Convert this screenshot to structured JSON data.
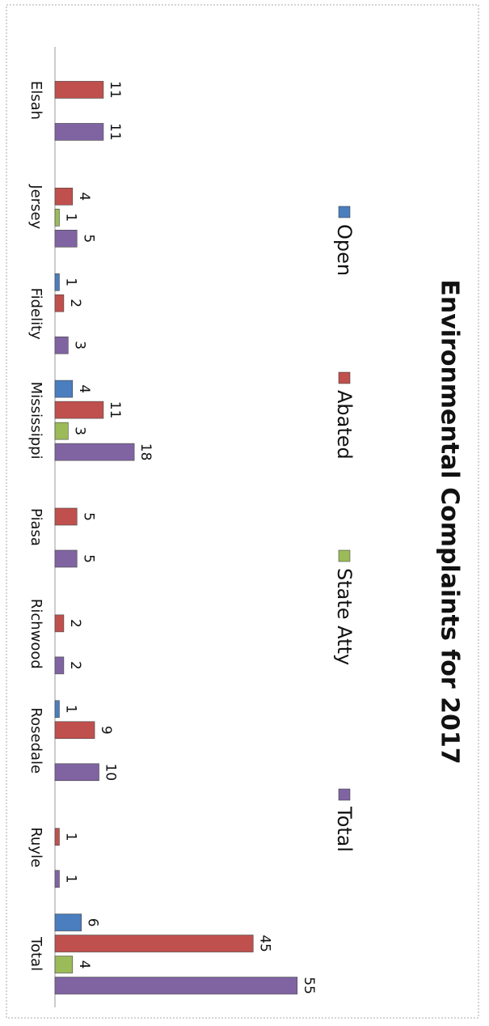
{
  "chart_data": {
    "type": "bar",
    "orientation": "rotated-90",
    "title": "Environmental Complaints for 2017",
    "categories": [
      "Elsah",
      "Jersey",
      "Fidelity",
      "Mississippi",
      "Piasa",
      "Richwood",
      "Rosedale",
      "Ruyle",
      "Total"
    ],
    "series": [
      {
        "name": "Open",
        "color": "#4a7ebf",
        "values": [
          null,
          null,
          1,
          4,
          null,
          null,
          1,
          null,
          6
        ]
      },
      {
        "name": "Abated",
        "color": "#c0504d",
        "values": [
          11,
          4,
          2,
          11,
          5,
          2,
          9,
          1,
          45
        ]
      },
      {
        "name": "State Atty",
        "color": "#9bbb59",
        "values": [
          null,
          1,
          null,
          3,
          null,
          null,
          null,
          null,
          4
        ]
      },
      {
        "name": "Total",
        "color": "#8064a2",
        "values": [
          11,
          5,
          3,
          18,
          5,
          2,
          10,
          1,
          55
        ]
      }
    ],
    "legend": "top"
  }
}
